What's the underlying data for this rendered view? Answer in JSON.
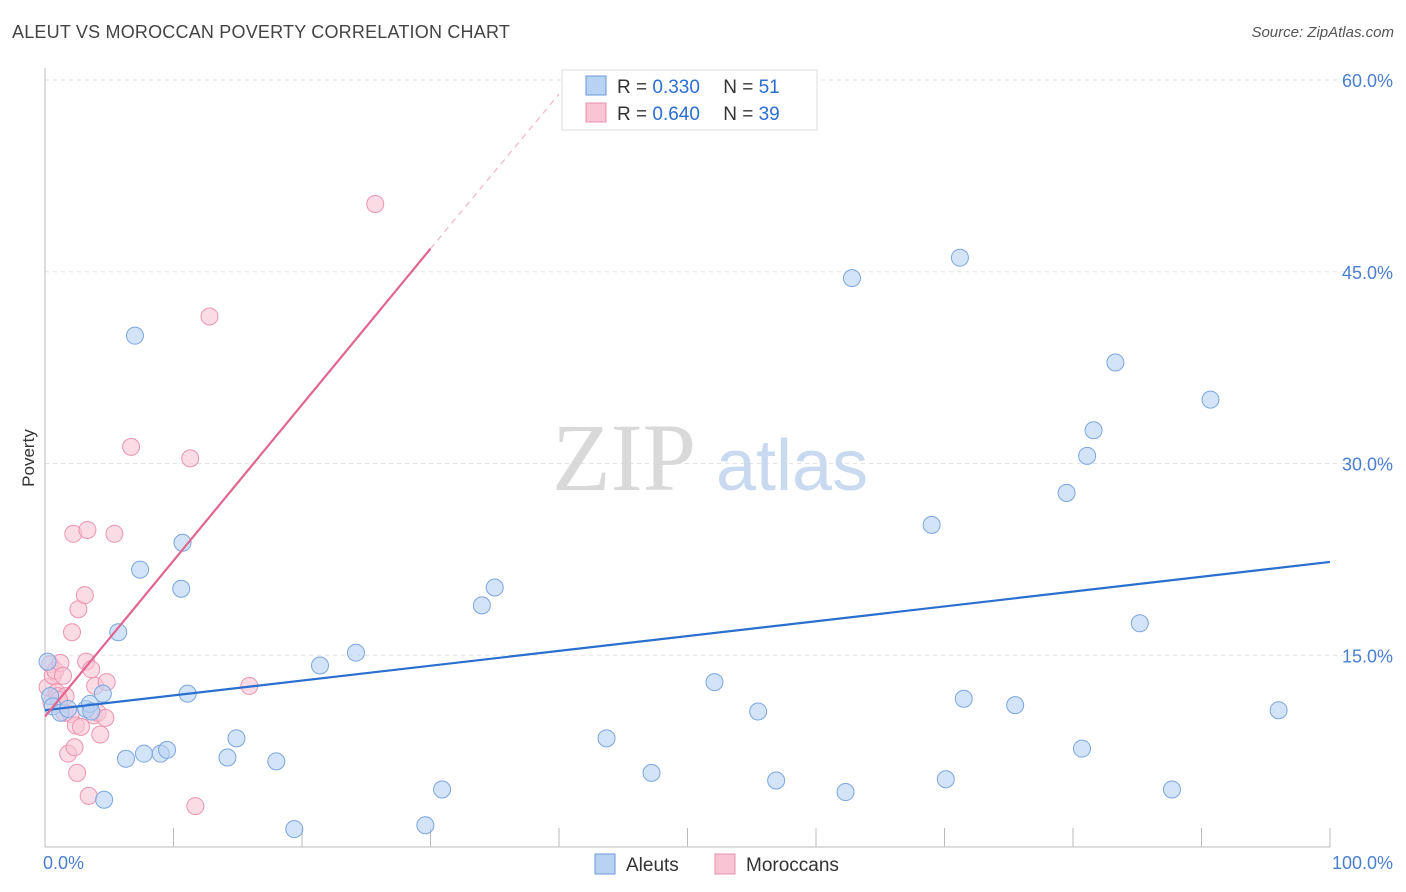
{
  "title": "ALEUT VS MOROCCAN POVERTY CORRELATION CHART",
  "source": "Source: ZipAtlas.com",
  "watermark": {
    "zip": "ZIP",
    "atlas": "atlas"
  },
  "legend_top": [
    {
      "r_label": "R = ",
      "r_value": "0.330",
      "n_label": "N = ",
      "n_value": "51",
      "color": "#a8c8f0",
      "border": "#6a9ad8"
    },
    {
      "r_label": "R = ",
      "r_value": "0.640",
      "n_label": "N = ",
      "n_value": "39",
      "color": "#f8bcd0",
      "border": "#e890ac"
    }
  ],
  "colors": {
    "aleut_fill": "#b8d2f4",
    "aleut_stroke": "#7aa6e0",
    "aleut_line": "#2a6fd0",
    "moroccan_fill": "#f9c4d4",
    "moroccan_stroke": "#ec94b2",
    "moroccan_line": "#e06690",
    "accent_text": "#2a6fd0"
  },
  "chart_data": {
    "type": "scatter",
    "title": "ALEUT VS MOROCCAN POVERTY CORRELATION CHART",
    "xlabel": "",
    "ylabel": "Poverty",
    "xlim": [
      0,
      100
    ],
    "ylim": [
      0,
      60
    ],
    "x_tick_labels": [
      "0.0%",
      "100.0%"
    ],
    "y_ticks": [
      15,
      30,
      45,
      60
    ],
    "y_tick_labels": [
      "15.0%",
      "30.0%",
      "45.0%",
      "60.0%"
    ],
    "legend_bottom": [
      "Aleuts",
      "Moroccans"
    ],
    "series": [
      {
        "name": "Aleuts",
        "points": [
          [
            0.2,
            14.5
          ],
          [
            0.4,
            11.8
          ],
          [
            0.6,
            11.0
          ],
          [
            1.2,
            10.5
          ],
          [
            1.8,
            10.8
          ],
          [
            3.2,
            10.8
          ],
          [
            3.5,
            11.2
          ],
          [
            3.6,
            10.6
          ],
          [
            4.5,
            12.0
          ],
          [
            4.6,
            3.7
          ],
          [
            5.7,
            16.8
          ],
          [
            6.3,
            6.9
          ],
          [
            7.0,
            40.0
          ],
          [
            7.4,
            21.7
          ],
          [
            7.7,
            7.3
          ],
          [
            9.0,
            7.3
          ],
          [
            9.5,
            7.6
          ],
          [
            10.6,
            20.2
          ],
          [
            10.7,
            23.8
          ],
          [
            11.1,
            12.0
          ],
          [
            14.2,
            7.0
          ],
          [
            14.9,
            8.5
          ],
          [
            18.0,
            6.7
          ],
          [
            19.4,
            1.4
          ],
          [
            21.4,
            14.2
          ],
          [
            24.2,
            15.2
          ],
          [
            29.6,
            1.7
          ],
          [
            30.9,
            4.5
          ],
          [
            34.0,
            18.9
          ],
          [
            35.0,
            20.3
          ],
          [
            43.7,
            8.5
          ],
          [
            47.2,
            5.8
          ],
          [
            52.1,
            12.9
          ],
          [
            55.5,
            10.6
          ],
          [
            56.9,
            5.2
          ],
          [
            62.3,
            4.3
          ],
          [
            62.8,
            44.5
          ],
          [
            69.0,
            25.2
          ],
          [
            70.1,
            5.3
          ],
          [
            71.2,
            46.1
          ],
          [
            71.5,
            11.6
          ],
          [
            75.5,
            11.1
          ],
          [
            79.5,
            27.7
          ],
          [
            80.7,
            7.7
          ],
          [
            81.1,
            30.6
          ],
          [
            81.6,
            32.6
          ],
          [
            83.3,
            37.9
          ],
          [
            85.2,
            17.5
          ],
          [
            87.7,
            4.5
          ],
          [
            90.7,
            35.0
          ],
          [
            96.0,
            10.7
          ]
        ]
      },
      {
        "name": "Moroccans",
        "points": [
          [
            0.2,
            12.5
          ],
          [
            0.4,
            14.3
          ],
          [
            0.5,
            11.3
          ],
          [
            0.6,
            13.4
          ],
          [
            0.8,
            13.8
          ],
          [
            0.9,
            12.1
          ],
          [
            1.0,
            11.8
          ],
          [
            1.2,
            14.4
          ],
          [
            1.4,
            13.4
          ],
          [
            1.5,
            10.5
          ],
          [
            1.6,
            11.8
          ],
          [
            1.8,
            7.3
          ],
          [
            2.0,
            10.4
          ],
          [
            2.1,
            16.8
          ],
          [
            2.2,
            24.5
          ],
          [
            2.3,
            7.8
          ],
          [
            2.4,
            9.5
          ],
          [
            2.5,
            5.8
          ],
          [
            2.6,
            18.6
          ],
          [
            2.8,
            9.4
          ],
          [
            3.1,
            19.7
          ],
          [
            3.2,
            14.5
          ],
          [
            3.3,
            24.8
          ],
          [
            3.4,
            4.0
          ],
          [
            3.6,
            13.9
          ],
          [
            3.8,
            10.3
          ],
          [
            3.9,
            12.6
          ],
          [
            4.1,
            10.5
          ],
          [
            4.3,
            8.8
          ],
          [
            4.7,
            10.1
          ],
          [
            4.8,
            12.9
          ],
          [
            5.4,
            24.5
          ],
          [
            6.7,
            31.3
          ],
          [
            11.3,
            30.4
          ],
          [
            11.7,
            3.2
          ],
          [
            12.8,
            41.5
          ],
          [
            15.9,
            12.6
          ],
          [
            25.7,
            50.3
          ],
          [
            1.1,
            11.5
          ]
        ]
      }
    ],
    "trend_lines": [
      {
        "name": "Aleuts",
        "x": [
          0,
          100
        ],
        "y": [
          10.7,
          22.3
        ]
      },
      {
        "name": "Moroccans",
        "x": [
          0,
          30
        ],
        "y": [
          10.2,
          46.8
        ],
        "dashed_extension_to": [
          40,
          58.9
        ]
      }
    ]
  }
}
